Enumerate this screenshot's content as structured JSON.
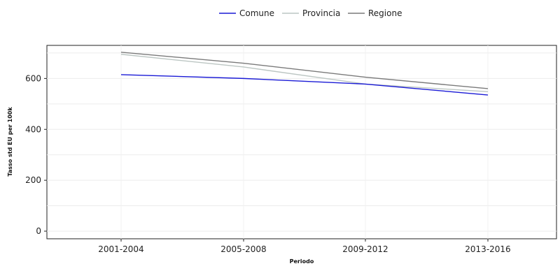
{
  "chart_data": {
    "type": "line",
    "categories": [
      "2001-2004",
      "2005-2008",
      "2009-2012",
      "2013-2016"
    ],
    "series": [
      {
        "name": "Comune",
        "color": "#1a1ad6",
        "values": [
          615,
          600,
          578,
          535
        ]
      },
      {
        "name": "Provincia",
        "color": "#bcc6c3",
        "values": [
          695,
          645,
          578,
          548
        ]
      },
      {
        "name": "Regione",
        "color": "#7a7a7a",
        "values": [
          703,
          660,
          605,
          560
        ]
      }
    ],
    "xlabel": "Periodo",
    "ylabel": "Tasso std EU per 100k",
    "ylim": [
      -30,
      730
    ],
    "yticks": [
      0,
      200,
      400,
      600
    ],
    "ygrid_minor": [
      100,
      300,
      500,
      700
    ],
    "grid": true,
    "legend_position": "top-center"
  }
}
